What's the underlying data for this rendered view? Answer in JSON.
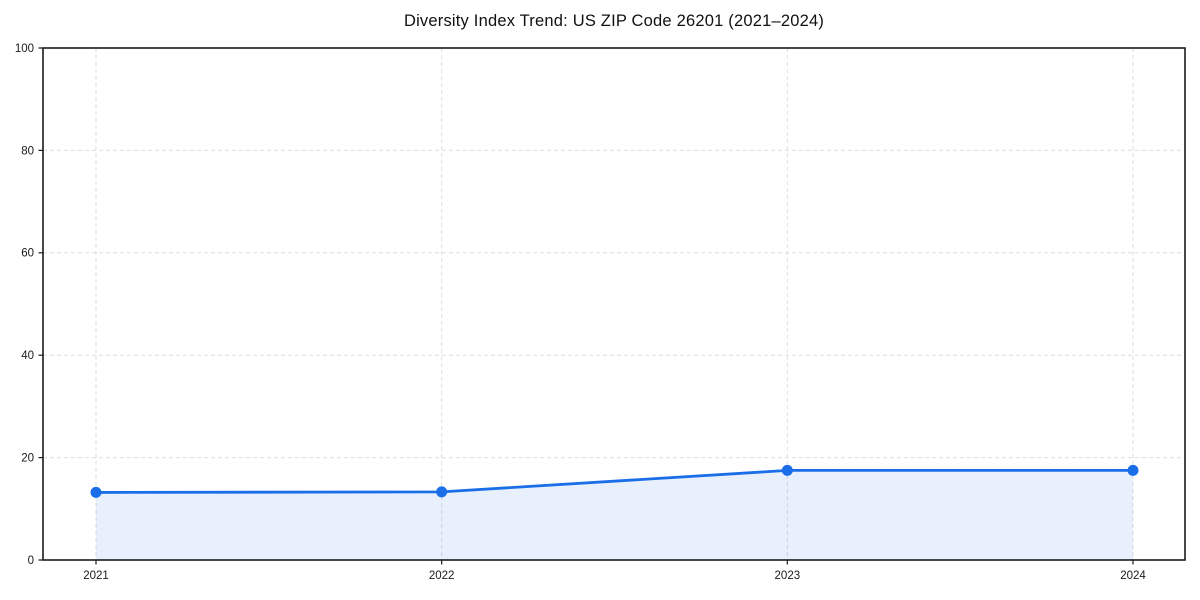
{
  "chart_data": {
    "type": "area",
    "title": "Diversity Index Trend: US ZIP Code 26201 (2021–2024)",
    "x": [
      "2021",
      "2022",
      "2023",
      "2024"
    ],
    "series": [
      {
        "name": "Diversity Index",
        "values": [
          13.2,
          13.3,
          17.5,
          17.5
        ]
      }
    ],
    "xlabel": "",
    "ylabel": "",
    "ylim": [
      0,
      100
    ],
    "yticks": [
      0,
      20,
      40,
      60,
      80,
      100
    ],
    "grid": "dashed, both axes, light gray",
    "legend": "none",
    "line_color": "#1a6ee8",
    "fill_color": "#1a6ee8",
    "fill_opacity": 0.1,
    "marker_radius": 5.5,
    "line_width": 2.8,
    "grid_color": "#dedede",
    "axis_color": "#1a1a1a",
    "tick_label_color": "#1a1a1a",
    "background_color": "#ffffff"
  }
}
